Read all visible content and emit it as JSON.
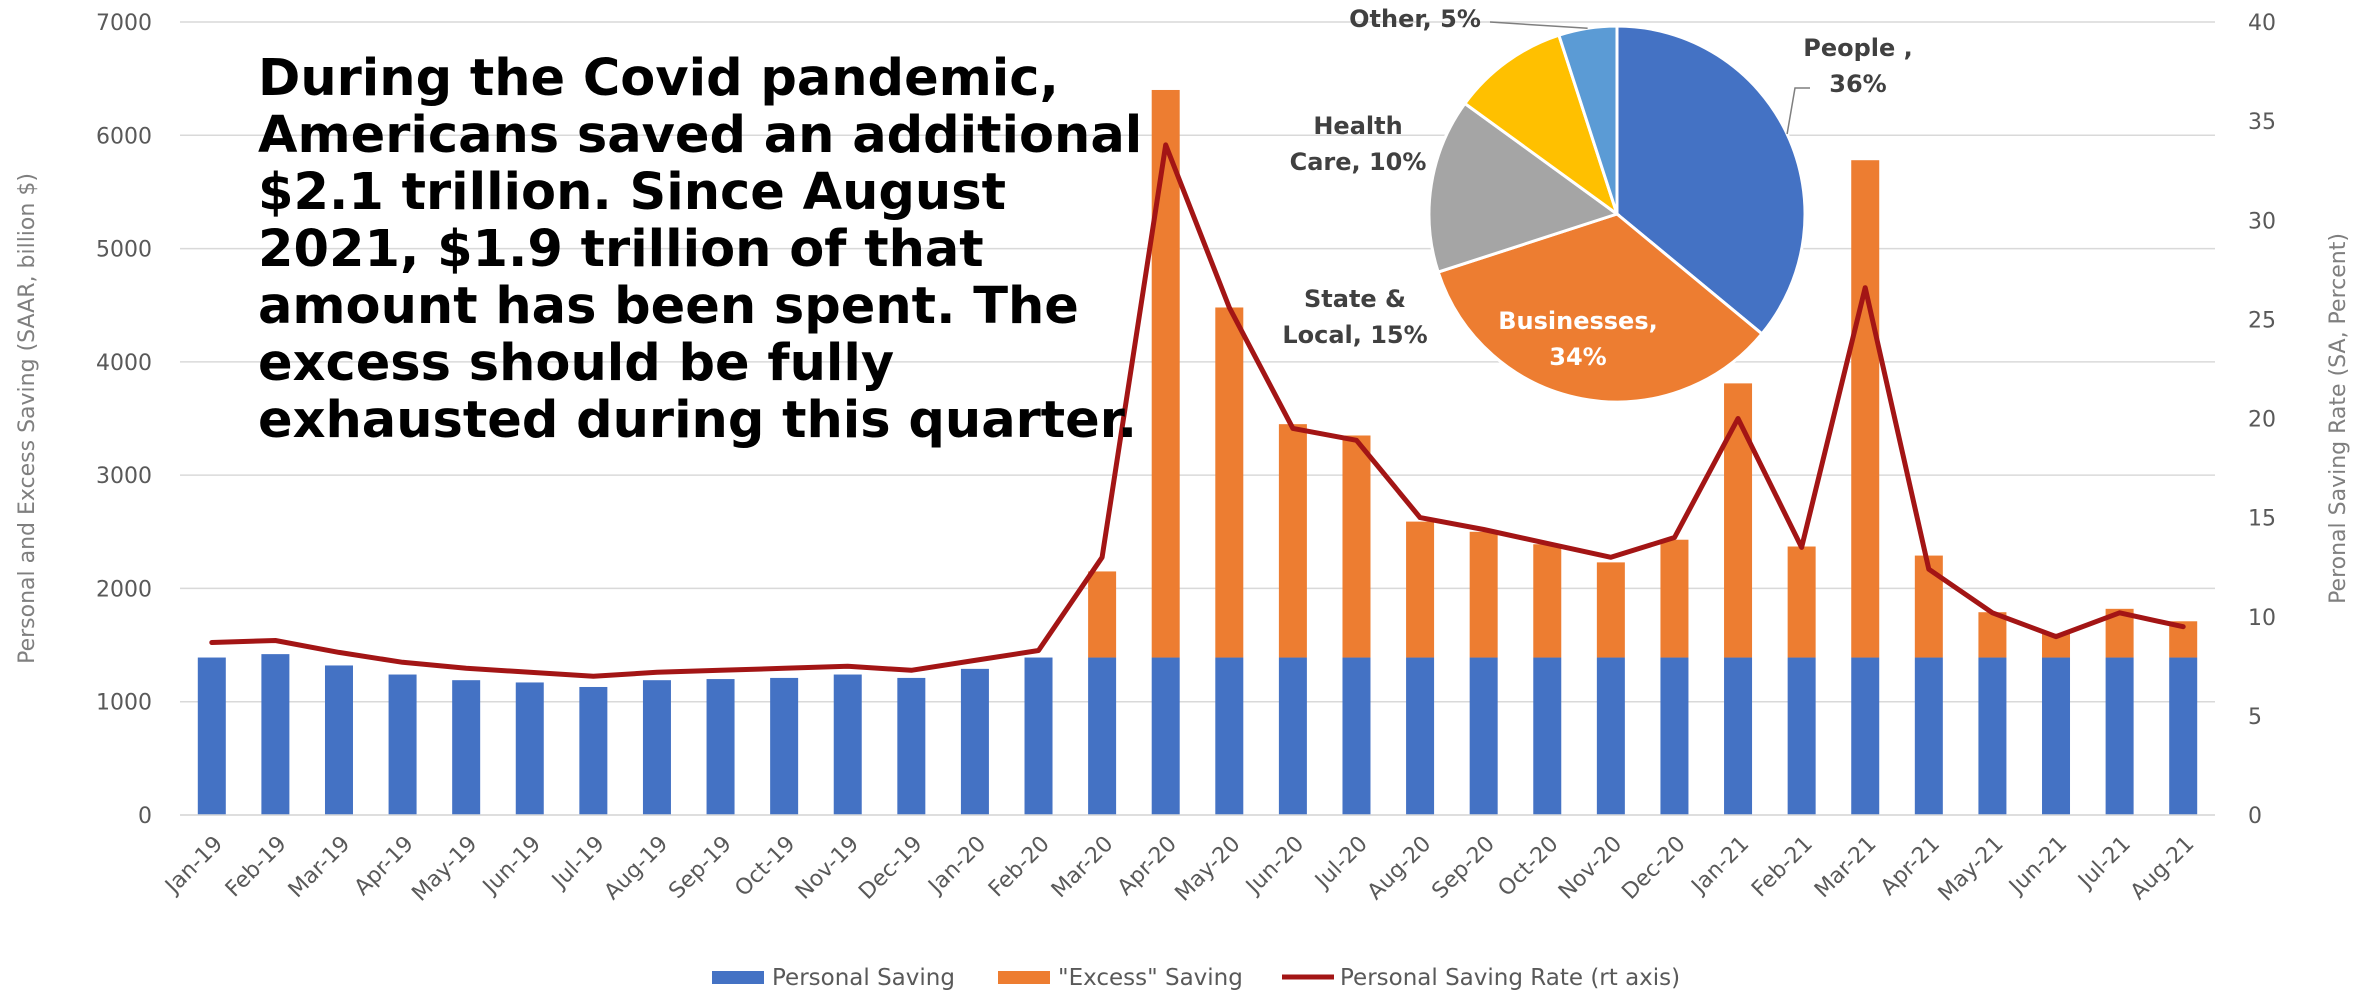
{
  "headline": "During the Covid pandemic, Americans saved an additional $2.1 trillion. Since August 2021, $1.9 trillion of that amount has been spent. The excess should be fully exhausted during this quarter.",
  "colors": {
    "personal_saving": "#4472C4",
    "excess_saving": "#ED7D31",
    "saving_rate": "#A31515",
    "gridline": "#D9D9D9",
    "pie_people": "#4472C4",
    "pie_businesses": "#ED7D31",
    "pie_state_local": "#A5A5A5",
    "pie_health_care": "#FFC000",
    "pie_other": "#5B9BD5"
  },
  "chart_data": [
    {
      "type": "bar",
      "stacked": true,
      "categories": [
        "Jan-19",
        "Feb-19",
        "Mar-19",
        "Apr-19",
        "May-19",
        "Jun-19",
        "Jul-19",
        "Aug-19",
        "Sep-19",
        "Oct-19",
        "Nov-19",
        "Dec-19",
        "Jan-20",
        "Feb-20",
        "Mar-20",
        "Apr-20",
        "May-20",
        "Jun-20",
        "Jul-20",
        "Aug-20",
        "Sep-20",
        "Oct-20",
        "Nov-20",
        "Dec-20",
        "Jan-21",
        "Feb-21",
        "Mar-21",
        "Apr-21",
        "May-21",
        "Jun-21",
        "Jul-21",
        "Aug-21"
      ],
      "series": [
        {
          "name": "Personal Saving",
          "axis": "left",
          "values": [
            1390,
            1420,
            1320,
            1240,
            1190,
            1170,
            1130,
            1190,
            1200,
            1210,
            1240,
            1210,
            1290,
            1390,
            1390,
            1390,
            1390,
            1390,
            1390,
            1390,
            1390,
            1390,
            1390,
            1390,
            1390,
            1390,
            1390,
            1390,
            1390,
            1390,
            1390,
            1390
          ]
        },
        {
          "name": "\"Excess\" Saving",
          "axis": "left",
          "values": [
            0,
            0,
            0,
            0,
            0,
            0,
            0,
            0,
            0,
            0,
            0,
            0,
            0,
            0,
            760,
            5010,
            3090,
            2060,
            1960,
            1200,
            1110,
            1000,
            840,
            1040,
            2420,
            980,
            4390,
            900,
            400,
            210,
            430,
            320
          ]
        },
        {
          "name": "Personal Saving Rate (rt axis)",
          "type": "line",
          "axis": "right",
          "values": [
            8.7,
            8.8,
            8.2,
            7.7,
            7.4,
            7.2,
            7.0,
            7.2,
            7.3,
            7.4,
            7.5,
            7.3,
            7.8,
            8.3,
            13.0,
            33.8,
            25.6,
            19.5,
            18.9,
            15.0,
            14.4,
            13.7,
            13.0,
            14.0,
            20.0,
            13.5,
            26.6,
            12.4,
            10.2,
            9.0,
            10.2,
            9.5
          ]
        }
      ],
      "ylim": [
        0,
        7000
      ],
      "y_ticks": [
        "0",
        "1000",
        "2000",
        "3000",
        "4000",
        "5000",
        "6000",
        "7000"
      ],
      "y2lim": [
        0,
        40
      ],
      "y2_ticks": [
        "0",
        "5",
        "10",
        "15",
        "20",
        "25",
        "30",
        "35",
        "40"
      ],
      "ylabel": "Personal and Excess Saving (SAAR, billion $)",
      "y2label": "Peronal Saving Rate (SA, Percent)",
      "xlabel": "",
      "grid": "horizontal",
      "legend": "bottom"
    },
    {
      "type": "pie",
      "slices": [
        {
          "label_lines": [
            "People ,",
            "36%"
          ],
          "value": 36
        },
        {
          "label_lines": [
            "Businesses,",
            "34%"
          ],
          "value": 34
        },
        {
          "label_lines": [
            "State &",
            "Local, 15%"
          ],
          "value": 15
        },
        {
          "label_lines": [
            "Health",
            "Care, 10%"
          ],
          "value": 10
        },
        {
          "label_lines": [
            "Other, 5%"
          ],
          "value": 5
        }
      ]
    }
  ]
}
